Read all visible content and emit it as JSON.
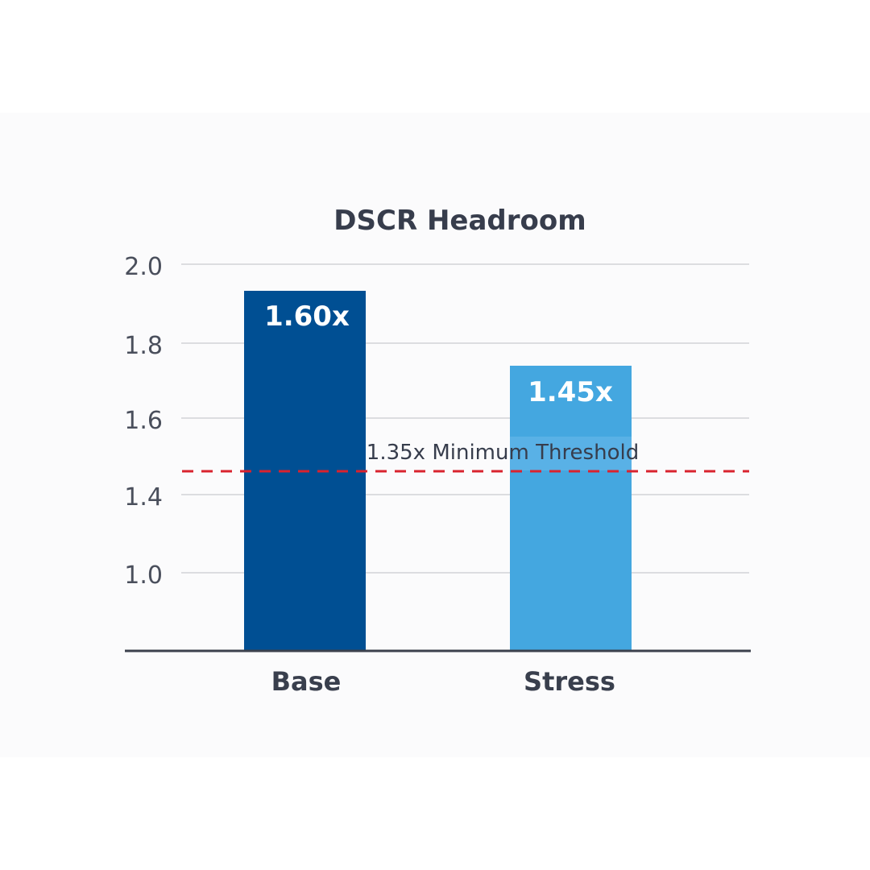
{
  "chart_data": {
    "type": "bar",
    "title": "DSCR Headroom",
    "categories": [
      "Base",
      "Stress"
    ],
    "values": [
      1.6,
      1.45
    ],
    "value_labels": [
      "1.60x",
      "1.45x"
    ],
    "y_ticks": [
      "2.0",
      "1.8",
      "1.6",
      "1.4",
      "1.0"
    ],
    "xlabel": "",
    "ylabel": "",
    "grid": true,
    "legend": "none",
    "threshold": {
      "value": 1.35,
      "label": "1.35x Minimum Threshold",
      "color": "#d9232e",
      "style": "dashed"
    },
    "colors": {
      "base": "#004f93",
      "stress": "#44a7e0",
      "stress_highlight": "#5db3e6",
      "gridline": "#dcdde0",
      "axis": "#3c414d"
    }
  }
}
